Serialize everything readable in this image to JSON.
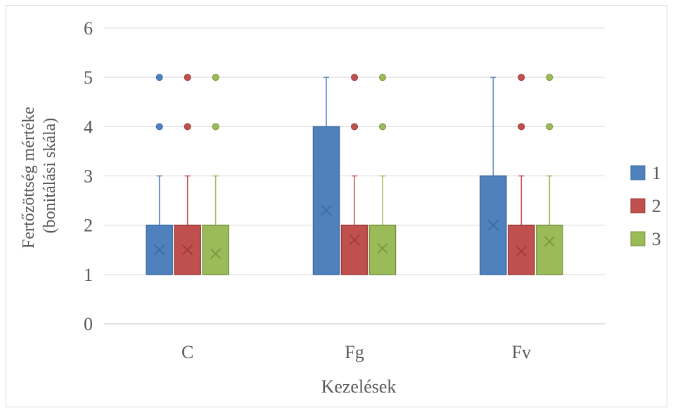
{
  "chart_data": {
    "type": "box",
    "title": "",
    "xlabel": "Kezelések",
    "ylabel_line1": "Fertőzöttség mértéke",
    "ylabel_line2": "(bonitálási skála)",
    "ylim": [
      0,
      6
    ],
    "yticks": [
      0,
      1,
      2,
      3,
      4,
      5,
      6
    ],
    "ytick_labels": [
      "0",
      "1",
      "2",
      "3",
      "4",
      "5",
      "6"
    ],
    "grid": true,
    "legend_position": "right",
    "categories": [
      "C",
      "Fg",
      "Fv"
    ],
    "series": [
      {
        "name": "1",
        "color": "#4f81bd",
        "edge": "#3a6aa3",
        "boxes": [
          {
            "category": "C",
            "min": 1,
            "q1": 1,
            "median": 1,
            "q3": 2,
            "max": 3,
            "mean": 1.5,
            "outliers": [
              4,
              5
            ]
          },
          {
            "category": "Fg",
            "min": 1,
            "q1": 1,
            "median": 1,
            "q3": 4,
            "max": 5,
            "mean": 2.3,
            "outliers": []
          },
          {
            "category": "Fv",
            "min": 1,
            "q1": 1,
            "median": 1,
            "q3": 3,
            "max": 5,
            "mean": 2.0,
            "outliers": []
          }
        ]
      },
      {
        "name": "2",
        "color": "#c0504d",
        "edge": "#9b3a37",
        "boxes": [
          {
            "category": "C",
            "min": 1,
            "q1": 1,
            "median": 1,
            "q3": 2,
            "max": 3,
            "mean": 1.5,
            "outliers": [
              4,
              5
            ]
          },
          {
            "category": "Fg",
            "min": 1,
            "q1": 1,
            "median": 1,
            "q3": 2,
            "max": 3,
            "mean": 1.7,
            "outliers": [
              4,
              5
            ]
          },
          {
            "category": "Fv",
            "min": 1,
            "q1": 1,
            "median": 1,
            "q3": 2,
            "max": 3,
            "mean": 1.47,
            "outliers": [
              4,
              5
            ]
          }
        ]
      },
      {
        "name": "3",
        "color": "#9bbb59",
        "edge": "#76933c",
        "boxes": [
          {
            "category": "C",
            "min": 1,
            "q1": 1,
            "median": 1,
            "q3": 2,
            "max": 3,
            "mean": 1.42,
            "outliers": [
              4,
              5
            ]
          },
          {
            "category": "Fg",
            "min": 1,
            "q1": 1,
            "median": 1,
            "q3": 2,
            "max": 3,
            "mean": 1.53,
            "outliers": [
              4,
              5
            ]
          },
          {
            "category": "Fv",
            "min": 1,
            "q1": 1,
            "median": 1,
            "q3": 2,
            "max": 3,
            "mean": 1.67,
            "outliers": [
              4,
              5
            ]
          }
        ]
      }
    ]
  }
}
